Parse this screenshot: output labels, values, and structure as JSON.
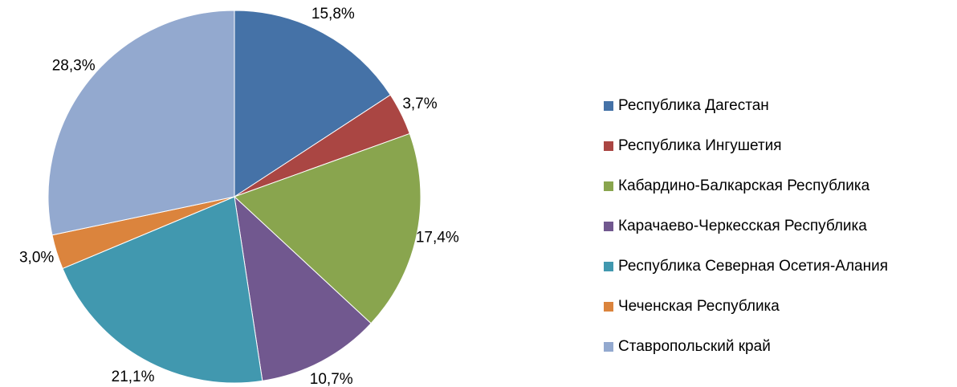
{
  "chart_data": {
    "type": "pie",
    "categories": [
      "Республика Дагестан",
      "Республика Ингушетия",
      "Кабардино-Балкарская Республика",
      "Карачаево-Черкесская Республика",
      "Республика Северная Осетия-Алания",
      "Чеченская Республика",
      "Ставропольский край"
    ],
    "values": [
      15.8,
      3.7,
      17.4,
      10.7,
      21.1,
      3.0,
      28.3
    ],
    "value_labels": [
      "15,8%",
      "3,7%",
      "17,4%",
      "10,7%",
      "21,1%",
      "3,0%",
      "28,3%"
    ],
    "colors": [
      "#4572a7",
      "#aa4643",
      "#89a54e",
      "#71588f",
      "#4198af",
      "#db843d",
      "#93a9cf"
    ],
    "legend": "right"
  }
}
